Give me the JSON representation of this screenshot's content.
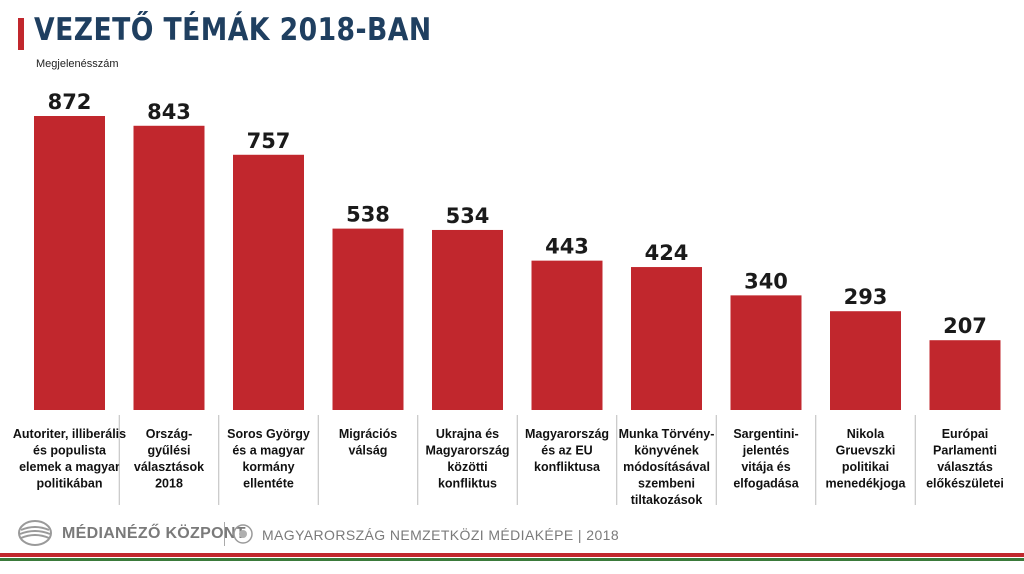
{
  "header": {
    "title": "VEZETŐ TÉMÁK 2018-BAN",
    "accent_color": "#c1272d",
    "title_color": "#1f3f60"
  },
  "footer": {
    "org_name": "MÉDIANÉZŐ KÖZPONT",
    "report_name": "MAGYARORSZÁG NEMZETKÖZI MÉDIAKÉPE | 2018",
    "stripe_colors": [
      "#c1272d",
      "#3a7a3a"
    ]
  },
  "chart_data": {
    "type": "bar",
    "ylabel": "Megjelenésszám",
    "bar_color": "#c1272d",
    "categories": [
      [
        "Autoriter, illiberális",
        "és populista",
        "elemek a magyar",
        "politikában"
      ],
      [
        "Ország-",
        "gyűlési",
        "választások",
        "2018"
      ],
      [
        "Soros György",
        "és a magyar",
        "kormány",
        "ellentéte"
      ],
      [
        "Migrációs",
        "válság"
      ],
      [
        "Ukrajna és",
        "Magyarország",
        "közötti",
        "konfliktus"
      ],
      [
        "Magyarország",
        "és az EU",
        "konfliktusa"
      ],
      [
        "Munka Törvény-",
        "könyvének",
        "módosításával",
        "szembeni",
        "tiltakozások"
      ],
      [
        "Sargentini-",
        "jelentés",
        "vitája és",
        "elfogadása"
      ],
      [
        "Nikola",
        "Gruevszki",
        "politikai",
        "menedékjoga"
      ],
      [
        "Európai",
        "Parlamenti",
        "választás",
        "előkészületei"
      ]
    ],
    "values": [
      872,
      843,
      757,
      538,
      534,
      443,
      424,
      340,
      293,
      207
    ],
    "ylim": [
      0,
      900
    ],
    "grid": false,
    "legend": "none"
  }
}
